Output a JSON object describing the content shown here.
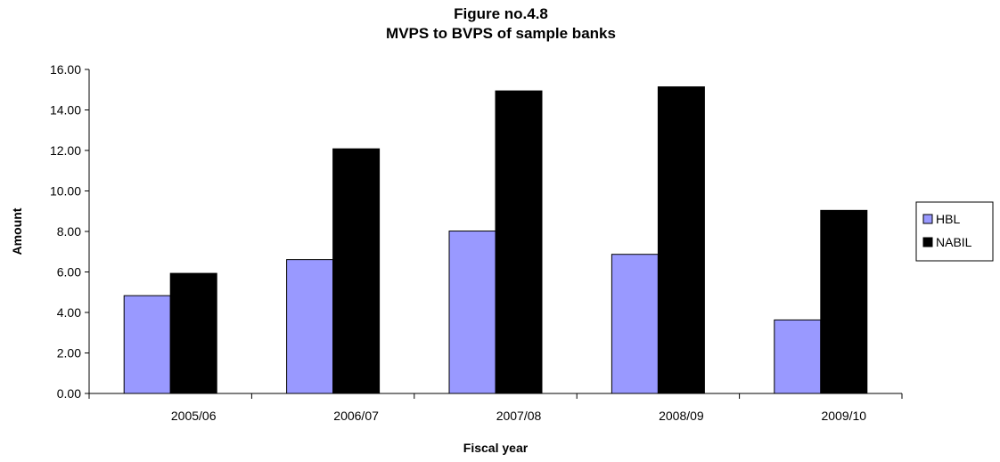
{
  "chart_data": {
    "type": "bar",
    "title": "Figure no.4.8",
    "subtitle": "MVPS to BVPS of sample banks",
    "xlabel": "Fiscal year",
    "ylabel": "Amount",
    "categories": [
      "2005/06",
      "2006/07",
      "2007/08",
      "2008/09",
      "2009/10"
    ],
    "series": [
      {
        "name": "HBL",
        "color": "#9999ff",
        "values": [
          4.83,
          6.61,
          8.02,
          6.87,
          3.63
        ]
      },
      {
        "name": "NABIL",
        "color": "#000000",
        "values": [
          5.93,
          12.08,
          14.94,
          15.14,
          9.04
        ]
      }
    ],
    "ylim": [
      0,
      16
    ],
    "yticks": [
      "0.00",
      "2.00",
      "4.00",
      "6.00",
      "8.00",
      "10.00",
      "12.00",
      "14.00",
      "16.00"
    ],
    "grid": false,
    "legend_position": "right"
  }
}
